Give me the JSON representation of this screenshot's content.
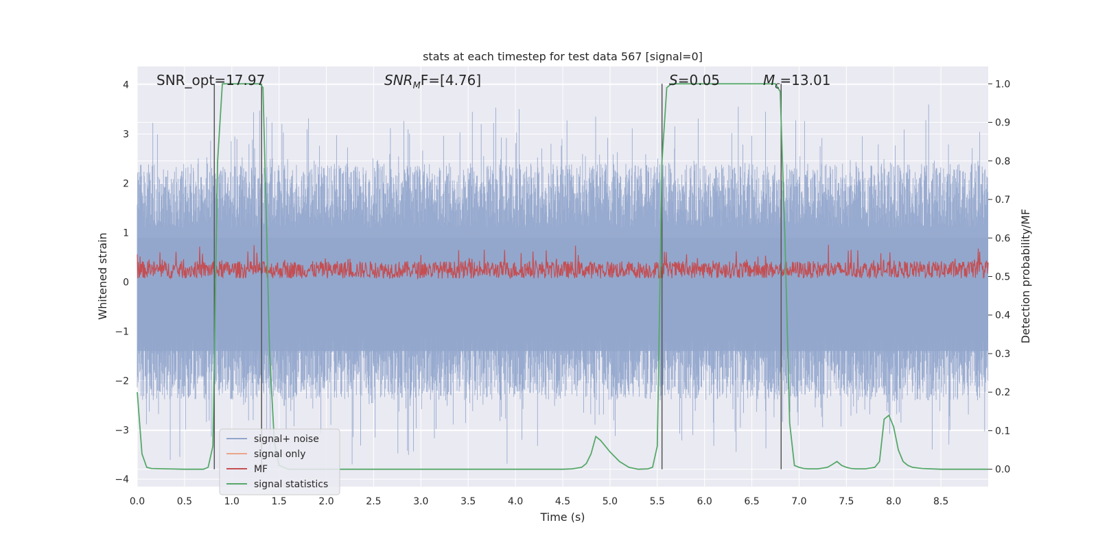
{
  "chart_data": {
    "type": "line",
    "title": "stats at each timestep for test data 567 [signal=0]",
    "xlabel": "Time (s)",
    "ylabel_left": "Whitened strain",
    "ylabel_right": "Detection probability/MF",
    "xlim": [
      0.0,
      9.0
    ],
    "ylim_left": [
      -4.15,
      4.37
    ],
    "ylim_right": [
      -0.045,
      1.045
    ],
    "xticks": [
      0.0,
      0.5,
      1.0,
      1.5,
      2.0,
      2.5,
      3.0,
      3.5,
      4.0,
      4.5,
      5.0,
      5.5,
      6.0,
      6.5,
      7.0,
      7.5,
      8.0,
      8.5
    ],
    "xtick_labels": [
      "0.0",
      "0.5",
      "1.0",
      "1.5",
      "2.0",
      "2.5",
      "3.0",
      "3.5",
      "4.0",
      "4.5",
      "5.0",
      "5.5",
      "6.0",
      "6.5",
      "7.0",
      "7.5",
      "8.0",
      "8.5"
    ],
    "yticks_left": [
      4,
      3,
      2,
      1,
      0,
      -1,
      -2,
      -3,
      -4
    ],
    "ytick_labels_left": [
      "4",
      "3",
      "2",
      "1",
      "0",
      "−1",
      "−2",
      "−3",
      "−4"
    ],
    "yticks_right": [
      1.0,
      0.9,
      0.8,
      0.7,
      0.6,
      0.5,
      0.4,
      0.3,
      0.2,
      0.1,
      0.0
    ],
    "ytick_labels_right": [
      "1.0",
      "0.9",
      "0.8",
      "0.7",
      "0.6",
      "0.5",
      "0.4",
      "0.3",
      "0.2",
      "0.1",
      "0.0"
    ],
    "annotations": {
      "snr_opt": "SNR_opt=17.97",
      "snr_mf_sym": "SNR",
      "snr_mf_sub": "M",
      "snr_mf_rest": "F=[4.76]",
      "s_sym": "S",
      "s_rest": "=0.05",
      "mc_sym": "M",
      "mc_sub": "c",
      "mc_rest": "=13.01"
    },
    "series": [
      {
        "name": "signal+ noise",
        "color": "#92a6cc",
        "axis": "left",
        "amplitude_range": [
          -3.7,
          3.6
        ]
      },
      {
        "name": "signal only",
        "color": "#eaa58a",
        "axis": "left",
        "values": []
      },
      {
        "name": "MF",
        "color": "#c44e52",
        "axis": "right",
        "range": [
          0.49,
          0.6
        ]
      },
      {
        "name": "signal statistics",
        "color": "#55a868",
        "axis": "right",
        "x": [
          0.0,
          0.05,
          0.1,
          0.15,
          0.3,
          0.5,
          0.7,
          0.75,
          0.8,
          0.85,
          0.9,
          1.0,
          1.2,
          1.3,
          1.33,
          1.36,
          1.4,
          1.45,
          1.5,
          1.6,
          2.0,
          3.0,
          4.0,
          4.5,
          4.6,
          4.7,
          4.75,
          4.8,
          4.85,
          4.9,
          4.95,
          5.0,
          5.1,
          5.2,
          5.3,
          5.4,
          5.45,
          5.5,
          5.55,
          5.6,
          5.65,
          5.7,
          6.0,
          6.5,
          6.75,
          6.8,
          6.85,
          6.9,
          6.95,
          7.0,
          7.05,
          7.1,
          7.2,
          7.3,
          7.35,
          7.4,
          7.45,
          7.5,
          7.55,
          7.6,
          7.7,
          7.8,
          7.85,
          7.9,
          7.95,
          8.0,
          8.05,
          8.1,
          8.15,
          8.2,
          8.3,
          8.5,
          9.0
        ],
        "values": [
          0.2,
          0.04,
          0.005,
          0.002,
          0.001,
          0.0,
          0.0,
          0.005,
          0.06,
          0.8,
          1.0,
          1.0,
          1.0,
          1.0,
          0.99,
          0.7,
          0.3,
          0.07,
          0.01,
          0.0,
          0.0,
          0.0,
          0.0,
          0.0,
          0.001,
          0.005,
          0.015,
          0.04,
          0.085,
          0.075,
          0.06,
          0.045,
          0.02,
          0.005,
          0.0,
          0.001,
          0.005,
          0.06,
          0.8,
          0.99,
          1.0,
          1.0,
          1.0,
          1.0,
          1.0,
          0.98,
          0.6,
          0.12,
          0.01,
          0.005,
          0.002,
          0.001,
          0.001,
          0.005,
          0.012,
          0.02,
          0.01,
          0.005,
          0.002,
          0.001,
          0.001,
          0.005,
          0.02,
          0.13,
          0.14,
          0.11,
          0.05,
          0.02,
          0.01,
          0.005,
          0.002,
          0.0,
          0.0
        ]
      }
    ],
    "vertical_markers": [
      {
        "x": 0.815,
        "axis_range": [
          0.0,
          1.0
        ]
      },
      {
        "x": 1.315,
        "axis_range": [
          0.0,
          1.0
        ]
      },
      {
        "x": 5.55,
        "axis_range": [
          0.0,
          1.0
        ]
      },
      {
        "x": 6.81,
        "axis_range": [
          0.0,
          1.0
        ]
      }
    ],
    "legend_position": "lower-left",
    "grid": true
  },
  "colors": {
    "plot_bg": "#eaeaf2",
    "grid": "#ffffff",
    "marker": "#555555"
  }
}
